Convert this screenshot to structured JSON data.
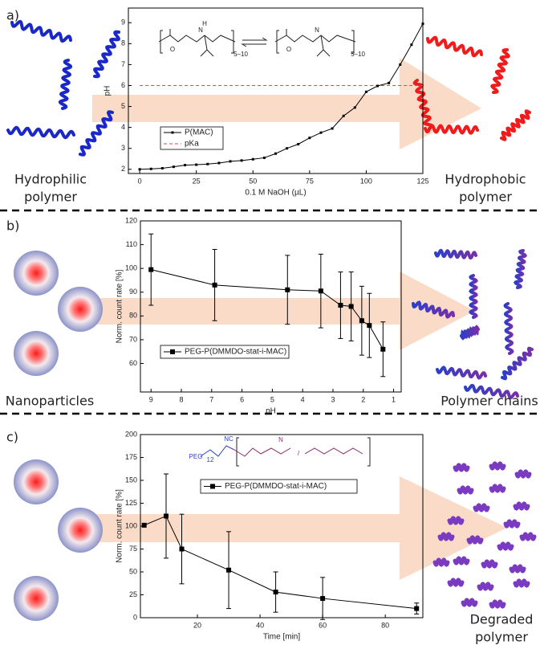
{
  "chart_data": [
    {
      "type": "line",
      "panel_label": "a)",
      "left_caption": [
        "Hydrophilic",
        "polymer"
      ],
      "right_caption": [
        "Hydrophobic",
        "polymer"
      ],
      "x_label": "0.1 M NaOH (µL)",
      "y_label": "pH",
      "structure_labels": [
        "O",
        "N",
        "H",
        "5–10",
        "O",
        "N",
        "5–10"
      ],
      "x": [
        0,
        5,
        10,
        15,
        20,
        25,
        30,
        35,
        40,
        45,
        50,
        55,
        60,
        65,
        70,
        75,
        80,
        85,
        90,
        95,
        100,
        105,
        110,
        115,
        120,
        125
      ],
      "series": [
        {
          "name": "P(MAC)",
          "color": "#000000",
          "values": [
            2.0,
            2.02,
            2.05,
            2.12,
            2.2,
            2.22,
            2.25,
            2.3,
            2.38,
            2.42,
            2.48,
            2.55,
            2.75,
            3.0,
            3.2,
            3.5,
            3.75,
            3.95,
            4.55,
            4.95,
            5.7,
            5.98,
            6.12,
            7.0,
            7.95,
            8.95
          ]
        }
      ],
      "reference_lines": [
        {
          "name": "pKa",
          "value": 6,
          "color": "#e0474c",
          "style": "dashed"
        }
      ],
      "xlim": [
        -5,
        125
      ],
      "ylim": [
        1.8,
        9.7
      ],
      "xticks": [
        0,
        25,
        50,
        75,
        100,
        125
      ],
      "yticks": [
        2,
        3,
        4,
        5,
        6,
        7,
        8,
        9
      ]
    },
    {
      "type": "line",
      "panel_label": "b)",
      "left_caption": [
        "Nanoparticles"
      ],
      "right_caption": [
        "Polymer chains"
      ],
      "x_label": "pH",
      "y_label": "Norm. count rate [%]",
      "x": [
        9,
        6.9,
        4.5,
        3.4,
        2.75,
        2.4,
        2.05,
        1.8,
        1.35
      ],
      "series": [
        {
          "name": "PEG-P(DMMDO-stat-i-MAC)",
          "color": "#000000",
          "values": [
            99.5,
            93,
            91,
            90.5,
            84.5,
            84,
            78,
            76,
            66
          ],
          "errors": [
            15,
            15,
            14.5,
            15.5,
            14,
            14.5,
            14.5,
            13.5,
            11.5
          ]
        }
      ],
      "xlim": [
        9.35,
        0.75
      ],
      "ylim": [
        48,
        120
      ],
      "xticks": [
        9,
        8,
        7,
        6,
        5,
        4,
        3,
        2,
        1
      ],
      "yticks": [
        60,
        70,
        80,
        90,
        100,
        110,
        120
      ]
    },
    {
      "type": "line",
      "panel_label": "c)",
      "left_caption": [],
      "right_caption": [
        "Degraded",
        "polymer"
      ],
      "x_label": "Time [min]",
      "y_label": "Norm. count rate [%]",
      "structure_labels": [
        "PEG",
        "12",
        "NC",
        "N",
        "/"
      ],
      "x": [
        3,
        10,
        15,
        30,
        45,
        60,
        90
      ],
      "series": [
        {
          "name": "PEG-P(DMMDO-stat-i-MAC)",
          "color": "#000000",
          "values": [
            101,
            111,
            75,
            52,
            28,
            21,
            10
          ],
          "errors": [
            null,
            46,
            38,
            42,
            22,
            23,
            6
          ]
        }
      ],
      "xlim": [
        1.8,
        92
      ],
      "ylim": [
        0,
        200
      ],
      "xticks": [
        20,
        40,
        60,
        80
      ],
      "yticks": [
        0,
        25,
        50,
        75,
        100,
        125,
        150,
        175,
        200
      ]
    }
  ]
}
